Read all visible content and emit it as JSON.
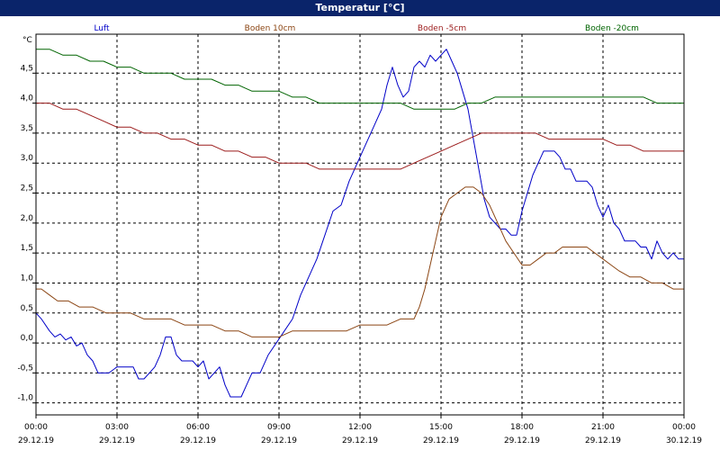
{
  "title": "Temperatur [°C]",
  "chart_data": {
    "type": "line",
    "title": "Temperatur [°C]",
    "ylabel": "°C",
    "ylim": [
      -1.2,
      5.15
    ],
    "xlim": [
      0,
      24
    ],
    "grid": true,
    "legend": "top",
    "y_ticks": [
      -1.0,
      -0.5,
      0.0,
      0.5,
      1.0,
      1.5,
      2.0,
      2.5,
      3.0,
      3.5,
      4.0,
      4.5
    ],
    "y_tick_labels": [
      "-1,0",
      "-0,5",
      "0,0",
      "0,5",
      "1,0",
      "1,5",
      "2,0",
      "2,5",
      "3,0",
      "3,5",
      "4,0",
      "4,5"
    ],
    "x_ticks": [
      {
        "x": 0,
        "time": "00:00",
        "date": "29.12.19"
      },
      {
        "x": 3,
        "time": "03:00",
        "date": "29.12.19"
      },
      {
        "x": 6,
        "time": "06:00",
        "date": "29.12.19"
      },
      {
        "x": 9,
        "time": "09:00",
        "date": "29.12.19"
      },
      {
        "x": 12,
        "time": "12:00",
        "date": "29.12.19"
      },
      {
        "x": 15,
        "time": "15:00",
        "date": "29.12.19"
      },
      {
        "x": 18,
        "time": "18:00",
        "date": "29.12.19"
      },
      {
        "x": 21,
        "time": "21:00",
        "date": "29.12.19"
      },
      {
        "x": 24,
        "time": "00:00",
        "date": "30.12.19"
      }
    ],
    "series": [
      {
        "name": "Luft",
        "color": "#0000c8",
        "x": [
          0,
          0.2,
          0.5,
          0.7,
          0.9,
          1.1,
          1.3,
          1.5,
          1.7,
          1.9,
          2.1,
          2.3,
          2.5,
          2.7,
          3.0,
          3.3,
          3.6,
          3.8,
          4.0,
          4.2,
          4.4,
          4.6,
          4.8,
          5.0,
          5.2,
          5.4,
          5.6,
          5.8,
          6.0,
          6.2,
          6.4,
          6.6,
          6.8,
          7.0,
          7.2,
          7.4,
          7.6,
          7.8,
          8.0,
          8.3,
          8.6,
          8.9,
          9.2,
          9.5,
          9.8,
          10.1,
          10.4,
          10.7,
          11.0,
          11.3,
          11.6,
          11.9,
          12.2,
          12.5,
          12.8,
          13.0,
          13.2,
          13.4,
          13.6,
          13.8,
          14.0,
          14.2,
          14.4,
          14.6,
          14.8,
          15.0,
          15.2,
          15.4,
          15.6,
          15.8,
          16.0,
          16.2,
          16.4,
          16.6,
          16.8,
          17.0,
          17.2,
          17.4,
          17.6,
          17.8,
          18.0,
          18.2,
          18.4,
          18.6,
          18.8,
          19.0,
          19.2,
          19.4,
          19.6,
          19.8,
          20.0,
          20.2,
          20.4,
          20.6,
          20.8,
          21.0,
          21.2,
          21.4,
          21.6,
          21.8,
          22.0,
          22.2,
          22.4,
          22.6,
          22.8,
          23.0,
          23.2,
          23.4,
          23.6,
          23.8,
          24.0
        ],
        "values": [
          0.5,
          0.4,
          0.2,
          0.1,
          0.15,
          0.05,
          0.1,
          -0.05,
          0.0,
          -0.2,
          -0.3,
          -0.5,
          -0.5,
          -0.5,
          -0.4,
          -0.4,
          -0.4,
          -0.6,
          -0.6,
          -0.5,
          -0.4,
          -0.2,
          0.1,
          0.1,
          -0.2,
          -0.3,
          -0.3,
          -0.3,
          -0.4,
          -0.3,
          -0.6,
          -0.5,
          -0.4,
          -0.7,
          -0.9,
          -0.9,
          -0.9,
          -0.7,
          -0.5,
          -0.5,
          -0.2,
          0.0,
          0.2,
          0.4,
          0.8,
          1.1,
          1.4,
          1.8,
          2.2,
          2.3,
          2.7,
          3.0,
          3.3,
          3.6,
          3.9,
          4.3,
          4.6,
          4.3,
          4.1,
          4.2,
          4.6,
          4.7,
          4.6,
          4.8,
          4.7,
          4.8,
          4.9,
          4.7,
          4.5,
          4.2,
          3.9,
          3.4,
          2.9,
          2.4,
          2.1,
          2.0,
          1.9,
          1.9,
          1.8,
          1.8,
          2.2,
          2.5,
          2.8,
          3.0,
          3.2,
          3.2,
          3.2,
          3.1,
          2.9,
          2.9,
          2.7,
          2.7,
          2.7,
          2.6,
          2.3,
          2.1,
          2.3,
          2.0,
          1.9,
          1.7,
          1.7,
          1.7,
          1.6,
          1.6,
          1.4,
          1.7,
          1.5,
          1.4,
          1.5,
          1.4,
          1.4
        ]
      },
      {
        "name": "Boden 10cm",
        "color": "#8b4513",
        "x": [
          0,
          0.2,
          0.5,
          0.8,
          1.2,
          1.6,
          2.1,
          2.6,
          3.0,
          3.5,
          4.0,
          4.5,
          5.0,
          5.5,
          6.0,
          6.5,
          7.0,
          7.5,
          8.0,
          8.5,
          9.0,
          9.5,
          10.0,
          10.5,
          11.0,
          11.5,
          12.0,
          12.5,
          13.0,
          13.5,
          14.0,
          14.2,
          14.4,
          14.6,
          14.8,
          15.0,
          15.3,
          15.6,
          15.9,
          16.2,
          16.5,
          16.8,
          17.1,
          17.4,
          17.7,
          18.0,
          18.3,
          18.6,
          18.9,
          19.2,
          19.5,
          19.8,
          20.1,
          20.4,
          20.7,
          21.0,
          21.3,
          21.6,
          22.0,
          22.4,
          22.8,
          23.2,
          23.6,
          24.0
        ],
        "values": [
          0.9,
          0.9,
          0.8,
          0.7,
          0.7,
          0.6,
          0.6,
          0.5,
          0.5,
          0.5,
          0.4,
          0.4,
          0.4,
          0.3,
          0.3,
          0.3,
          0.2,
          0.2,
          0.1,
          0.1,
          0.1,
          0.2,
          0.2,
          0.2,
          0.2,
          0.2,
          0.3,
          0.3,
          0.3,
          0.4,
          0.4,
          0.6,
          0.9,
          1.3,
          1.7,
          2.1,
          2.4,
          2.5,
          2.6,
          2.6,
          2.5,
          2.3,
          2.0,
          1.7,
          1.5,
          1.3,
          1.3,
          1.4,
          1.5,
          1.5,
          1.6,
          1.6,
          1.6,
          1.6,
          1.5,
          1.4,
          1.3,
          1.2,
          1.1,
          1.1,
          1.0,
          1.0,
          0.9,
          0.9
        ]
      },
      {
        "name": "Boden -5cm",
        "color": "#9b1b1b",
        "x": [
          0,
          0.5,
          1.0,
          1.5,
          2.0,
          2.5,
          3.0,
          3.5,
          4.0,
          4.5,
          5.0,
          5.5,
          6.0,
          6.5,
          7.0,
          7.5,
          8.0,
          8.5,
          9.0,
          9.5,
          10.0,
          10.5,
          11.0,
          11.5,
          12.0,
          12.5,
          13.0,
          13.5,
          14.0,
          14.5,
          15.0,
          15.5,
          16.0,
          16.5,
          17.0,
          17.5,
          18.0,
          18.5,
          19.0,
          19.5,
          20.0,
          20.5,
          21.0,
          21.5,
          22.0,
          22.5,
          23.0,
          23.5,
          24.0
        ],
        "values": [
          4.0,
          4.0,
          3.9,
          3.9,
          3.8,
          3.7,
          3.6,
          3.6,
          3.5,
          3.5,
          3.4,
          3.4,
          3.3,
          3.3,
          3.2,
          3.2,
          3.1,
          3.1,
          3.0,
          3.0,
          3.0,
          2.9,
          2.9,
          2.9,
          2.9,
          2.9,
          2.9,
          2.9,
          3.0,
          3.1,
          3.2,
          3.3,
          3.4,
          3.5,
          3.5,
          3.5,
          3.5,
          3.5,
          3.4,
          3.4,
          3.4,
          3.4,
          3.4,
          3.3,
          3.3,
          3.2,
          3.2,
          3.2,
          3.2
        ]
      },
      {
        "name": "Boden -20cm",
        "color": "#006400",
        "x": [
          0,
          0.5,
          1.0,
          1.5,
          2.0,
          2.5,
          3.0,
          3.5,
          4.0,
          4.5,
          5.0,
          5.5,
          6.0,
          6.5,
          7.0,
          7.5,
          8.0,
          8.5,
          9.0,
          9.5,
          10.0,
          10.5,
          11.0,
          11.5,
          12.0,
          12.5,
          13.0,
          13.5,
          14.0,
          14.5,
          15.0,
          15.5,
          16.0,
          16.5,
          17.0,
          17.5,
          18.0,
          18.5,
          19.0,
          19.5,
          20.0,
          20.5,
          21.0,
          21.5,
          22.0,
          22.5,
          23.0,
          23.5,
          24.0
        ],
        "values": [
          4.9,
          4.9,
          4.8,
          4.8,
          4.7,
          4.7,
          4.6,
          4.6,
          4.5,
          4.5,
          4.5,
          4.4,
          4.4,
          4.4,
          4.3,
          4.3,
          4.2,
          4.2,
          4.2,
          4.1,
          4.1,
          4.0,
          4.0,
          4.0,
          4.0,
          4.0,
          4.0,
          4.0,
          3.9,
          3.9,
          3.9,
          3.9,
          4.0,
          4.0,
          4.1,
          4.1,
          4.1,
          4.1,
          4.1,
          4.1,
          4.1,
          4.1,
          4.1,
          4.1,
          4.1,
          4.1,
          4.0,
          4.0,
          4.0
        ]
      }
    ]
  }
}
